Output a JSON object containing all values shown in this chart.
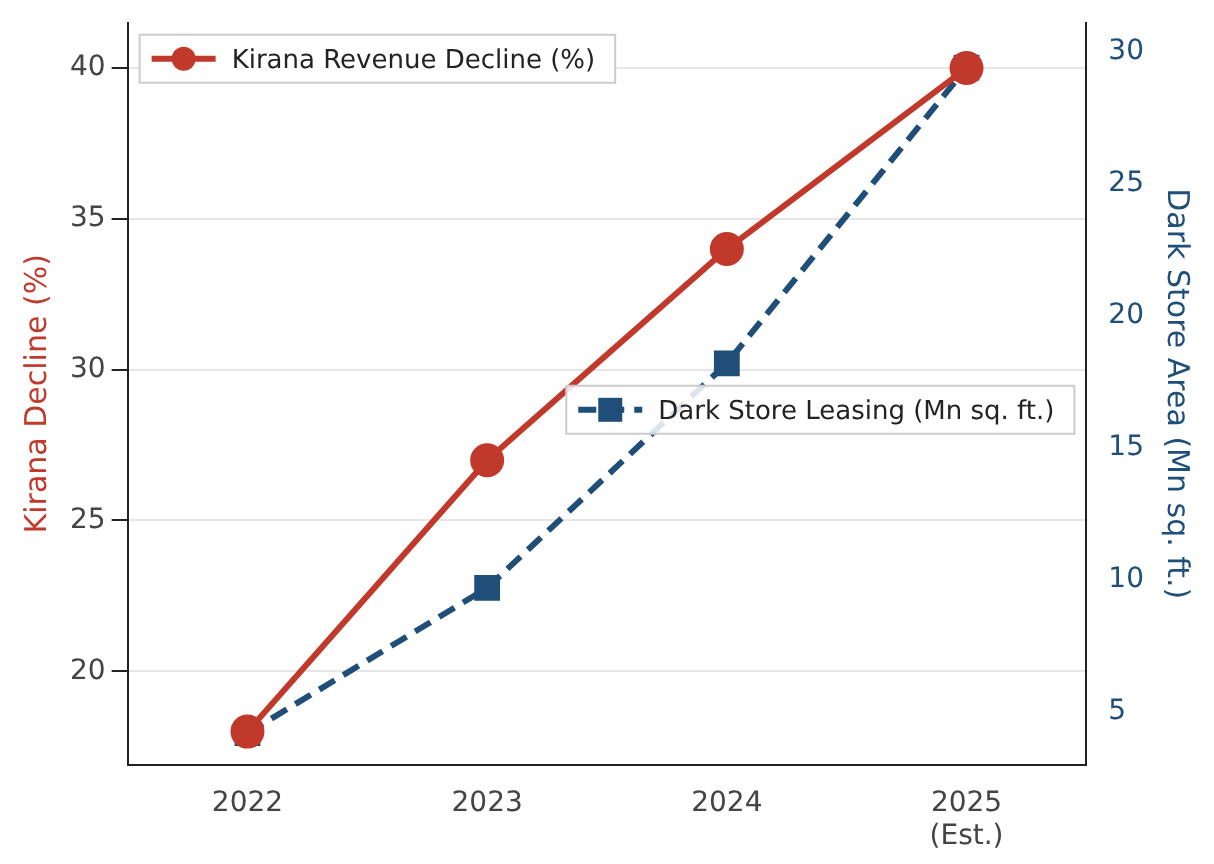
{
  "chart_data": {
    "type": "line",
    "categories": [
      "2022",
      "2023",
      "2024",
      "2025\n(Est.)"
    ],
    "ylabel": "Kirana Decline (%)",
    "y2label": "Dark Store Area (Mn sq. ft.)",
    "ylim": [
      16.9,
      41.5
    ],
    "yticks": [
      20,
      25,
      30,
      35,
      40
    ],
    "y2lim": [
      3,
      31.1
    ],
    "y2ticks": [
      5,
      10,
      15,
      20,
      25,
      30
    ],
    "grid": "y",
    "legend": "top left",
    "series": [
      {
        "name": "Kirana Revenue Decline (%)",
        "color": "#c0392b",
        "values": [
          18,
          27,
          34,
          40
        ],
        "marker": "circle",
        "line_style": "solid"
      },
      {
        "name": "Dark Store Leasing (Mn sq. ft.)",
        "color": "#1f4e79",
        "values": [
          4.2,
          9.7,
          18.2,
          29.4
        ],
        "axis": "y2",
        "marker": "square",
        "line_style": "dashed"
      }
    ]
  }
}
